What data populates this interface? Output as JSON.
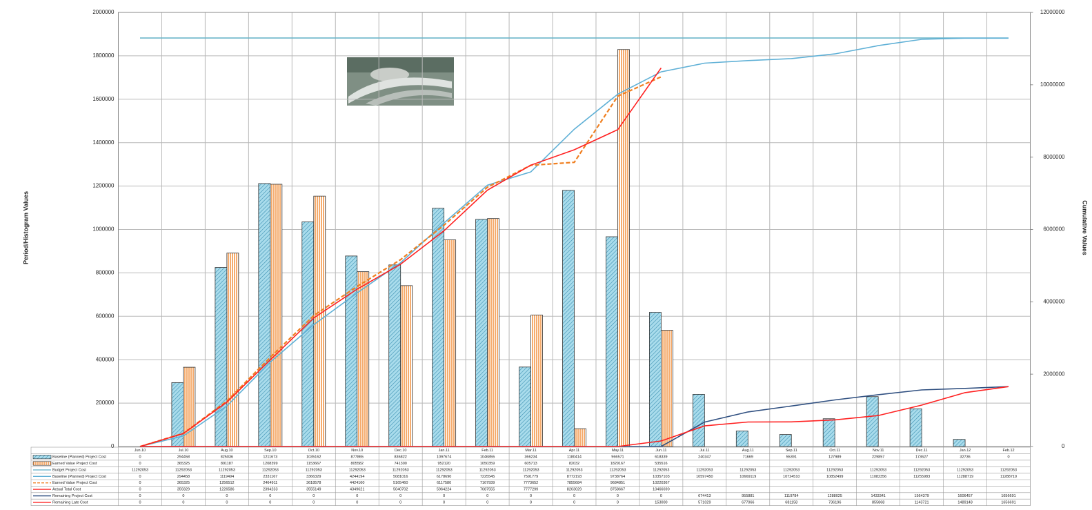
{
  "chart_data": {
    "type": "bar",
    "y_label": "Period/Histogram Values",
    "y2_label": "Cumulative Values",
    "categories": [
      "Jun.10",
      "Jul.10",
      "Aug.10",
      "Sep.10",
      "Oct.10",
      "Nov.10",
      "Dec.10",
      "Jan.11",
      "Feb.11",
      "Mar.11",
      "Apr.11",
      "May.11",
      "Jun.11",
      "Jul.11",
      "Aug.11",
      "Sep.11",
      "Oct.11",
      "Nov.11",
      "Dec.11",
      "Jan.12",
      "Feb.12"
    ],
    "ylim": [
      0,
      2000000
    ],
    "yticks": [
      0,
      200000,
      400000,
      600000,
      800000,
      1000000,
      1200000,
      1400000,
      1600000,
      1800000,
      2000000
    ],
    "y2lim": [
      0,
      12000000
    ],
    "y2ticks": [
      0,
      2000000,
      4000000,
      6000000,
      8000000,
      10000000,
      12000000
    ],
    "grid": true,
    "series": [
      {
        "name": "Baseline (Planned) Project Cost",
        "type": "bar",
        "hatch": "diagonal",
        "color": "#8ccfe3",
        "values": [
          0,
          294458,
          825036,
          1211673,
          1035162,
          877865,
          836822,
          1097674,
          1046855,
          366234,
          1180414,
          966571,
          618339,
          240347,
          71669,
          55391,
          127989,
          229857,
          173627,
          32736,
          0
        ]
      },
      {
        "name": "Earned Value Project Cost",
        "type": "bar",
        "hatch": "vertical",
        "color": "#f07f20",
        "values": [
          0,
          365325,
          891187,
          1208399,
          1153667,
          805582,
          741300,
          952120,
          1050359,
          605713,
          82032,
          1829167,
          535516,
          null,
          null,
          null,
          null,
          null,
          null,
          null,
          null
        ]
      },
      {
        "name": "Budget Project Cost",
        "type": "line",
        "axis": "y2",
        "color": "#6bb5c9",
        "values": [
          11292053,
          11292053,
          11292053,
          11292053,
          11292053,
          11292053,
          11292053,
          11292053,
          11292053,
          11292053,
          11292053,
          11292053,
          11292053,
          11292053,
          11292053,
          11292053,
          11292053,
          11292053,
          11292053,
          11292053,
          11292053
        ]
      },
      {
        "name": "Baseline (Planned) Project Cost",
        "type": "line",
        "axis": "y2",
        "color": "#5fb0d6",
        "values": [
          0,
          294458,
          1119494,
          2331167,
          3366329,
          4244194,
          5081016,
          6178690,
          7225545,
          7591779,
          8772193,
          9738764,
          10357103,
          10597450,
          10669119,
          10724510,
          10852499,
          11082356,
          11255983,
          11288719,
          11288719
        ]
      },
      {
        "name": "Earned Value Project Cost",
        "type": "line",
        "axis": "y2",
        "color": "#f07f20",
        "dashed": true,
        "values": [
          0,
          365325,
          1256512,
          2464911,
          3618578,
          4424160,
          5165460,
          6117580,
          7167939,
          7773652,
          7855684,
          9684851,
          10220367,
          null,
          null,
          null,
          null,
          null,
          null,
          null,
          null
        ]
      },
      {
        "name": "Actual Total Cost",
        "type": "line",
        "axis": "y2",
        "color": "#ff2020",
        "values": [
          0,
          359329,
          1226586,
          2394233,
          3555149,
          4349621,
          5040702,
          5964224,
          7087555,
          7777299,
          8203029,
          8758667,
          10466690,
          null,
          null,
          null,
          null,
          null,
          null,
          null,
          null
        ]
      },
      {
        "name": "Remaining Project Cost",
        "type": "line",
        "axis": "y2",
        "color": "#2f4f80",
        "values": [
          0,
          0,
          0,
          0,
          0,
          0,
          0,
          0,
          0,
          0,
          0,
          0,
          0,
          674413,
          955881,
          1119784,
          1288025,
          1433341,
          1564379,
          1606457,
          1656691
        ]
      },
      {
        "name": "Remaining Late Cost",
        "type": "line",
        "axis": "y2",
        "color": "#ff2020",
        "values": [
          0,
          0,
          0,
          0,
          0,
          0,
          0,
          0,
          0,
          0,
          0,
          0,
          153000,
          571029,
          677066,
          681158,
          736196,
          855868,
          1143721,
          1489148,
          1656691
        ]
      }
    ]
  }
}
